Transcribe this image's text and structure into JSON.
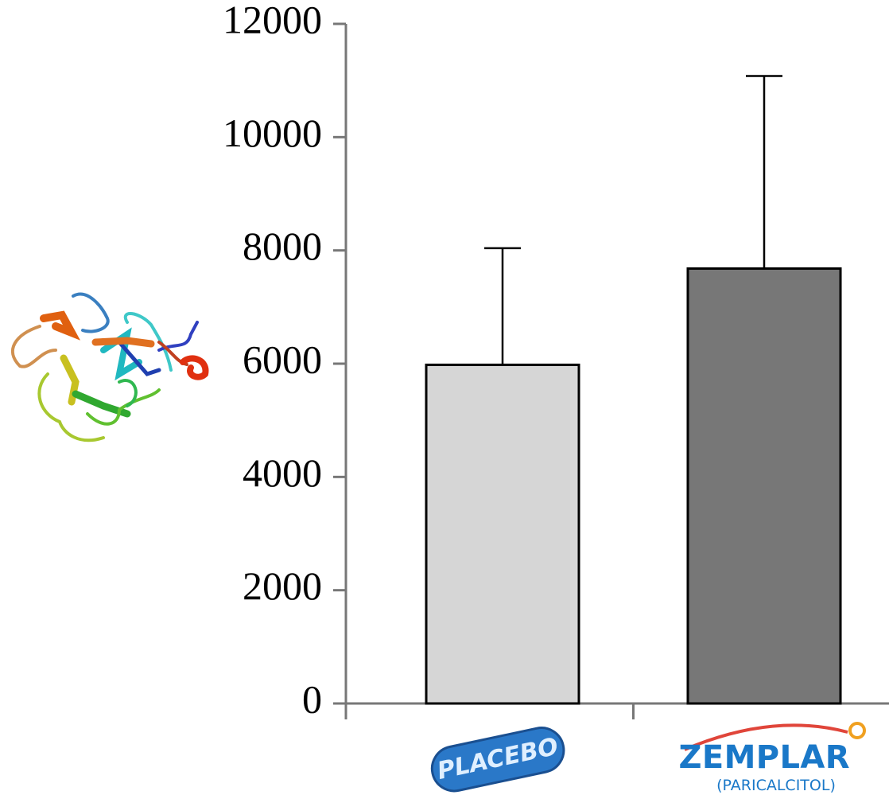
{
  "chart_data": {
    "type": "bar",
    "categories": [
      "PLACEBO",
      "ZEMPLAR"
    ],
    "category_notes": [
      null,
      "(PARICALCITOL)"
    ],
    "series": [
      {
        "colors": [
          "#d6d6d6",
          "#777777"
        ],
        "values": [
          5980,
          7680
        ],
        "errors": [
          2060,
          3400
        ]
      }
    ],
    "ylim": [
      0,
      12000
    ],
    "yticks": [
      0,
      2000,
      4000,
      6000,
      8000,
      10000,
      12000
    ]
  }
}
